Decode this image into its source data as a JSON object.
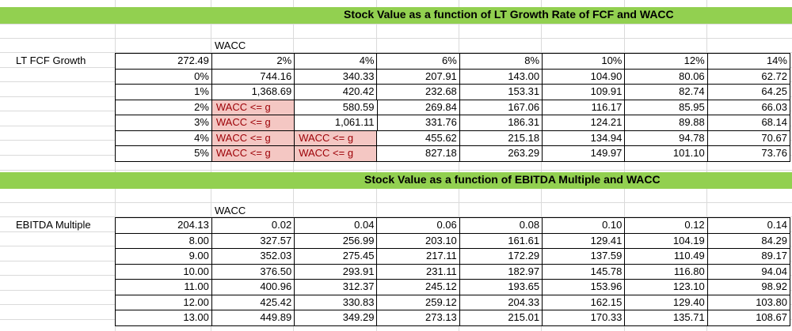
{
  "table1": {
    "title": "Stock Value as a function of LT Growth Rate of FCF and WACC",
    "wacc_label": "WACC",
    "row_label": "LT FCF Growth",
    "header": [
      "272.49",
      "2%",
      "4%",
      "6%",
      "8%",
      "10%",
      "12%",
      "14%"
    ],
    "rows": [
      [
        "0%",
        "744.16",
        "340.33",
        "207.91",
        "143.00",
        "104.90",
        "80.06",
        "62.72"
      ],
      [
        "1%",
        "1,368.69",
        "420.42",
        "232.68",
        "153.31",
        "109.91",
        "82.74",
        "64.25"
      ],
      [
        "2%",
        "WACC <= g",
        "580.59",
        "269.84",
        "167.06",
        "116.17",
        "85.95",
        "66.03"
      ],
      [
        "3%",
        "WACC <= g",
        "1,061.11",
        "331.76",
        "186.31",
        "124.21",
        "89.88",
        "68.14"
      ],
      [
        "4%",
        "WACC <= g",
        "WACC <= g",
        "455.62",
        "215.18",
        "134.94",
        "94.78",
        "70.67"
      ],
      [
        "5%",
        "WACC <= g",
        "WACC <= g",
        "827.18",
        "263.29",
        "149.97",
        "101.10",
        "73.76"
      ]
    ],
    "error_text": "WACC <= g"
  },
  "table2": {
    "title": "Stock Value as a function of EBITDA Multiple and WACC",
    "wacc_label": "WACC",
    "row_label": "EBITDA Multiple",
    "header": [
      "204.13",
      "0.02",
      "0.04",
      "0.06",
      "0.08",
      "0.10",
      "0.12",
      "0.14"
    ],
    "rows": [
      [
        "8.00",
        "327.57",
        "256.99",
        "203.10",
        "161.61",
        "129.41",
        "104.19",
        "84.29"
      ],
      [
        "9.00",
        "352.03",
        "275.45",
        "217.11",
        "172.29",
        "137.59",
        "110.49",
        "89.17"
      ],
      [
        "10.00",
        "376.50",
        "293.91",
        "231.11",
        "182.97",
        "145.78",
        "116.80",
        "94.04"
      ],
      [
        "11.00",
        "400.96",
        "312.37",
        "245.12",
        "193.65",
        "153.96",
        "123.10",
        "98.92"
      ],
      [
        "12.00",
        "425.42",
        "330.83",
        "259.12",
        "204.33",
        "162.15",
        "129.40",
        "103.80"
      ],
      [
        "13.00",
        "449.89",
        "349.29",
        "273.13",
        "215.01",
        "170.33",
        "135.71",
        "108.67"
      ]
    ]
  },
  "colors": {
    "banner": "#92d050",
    "error_fill": "#f4c7c3",
    "error_text": "#9c0006",
    "gridline": "#dadada"
  }
}
